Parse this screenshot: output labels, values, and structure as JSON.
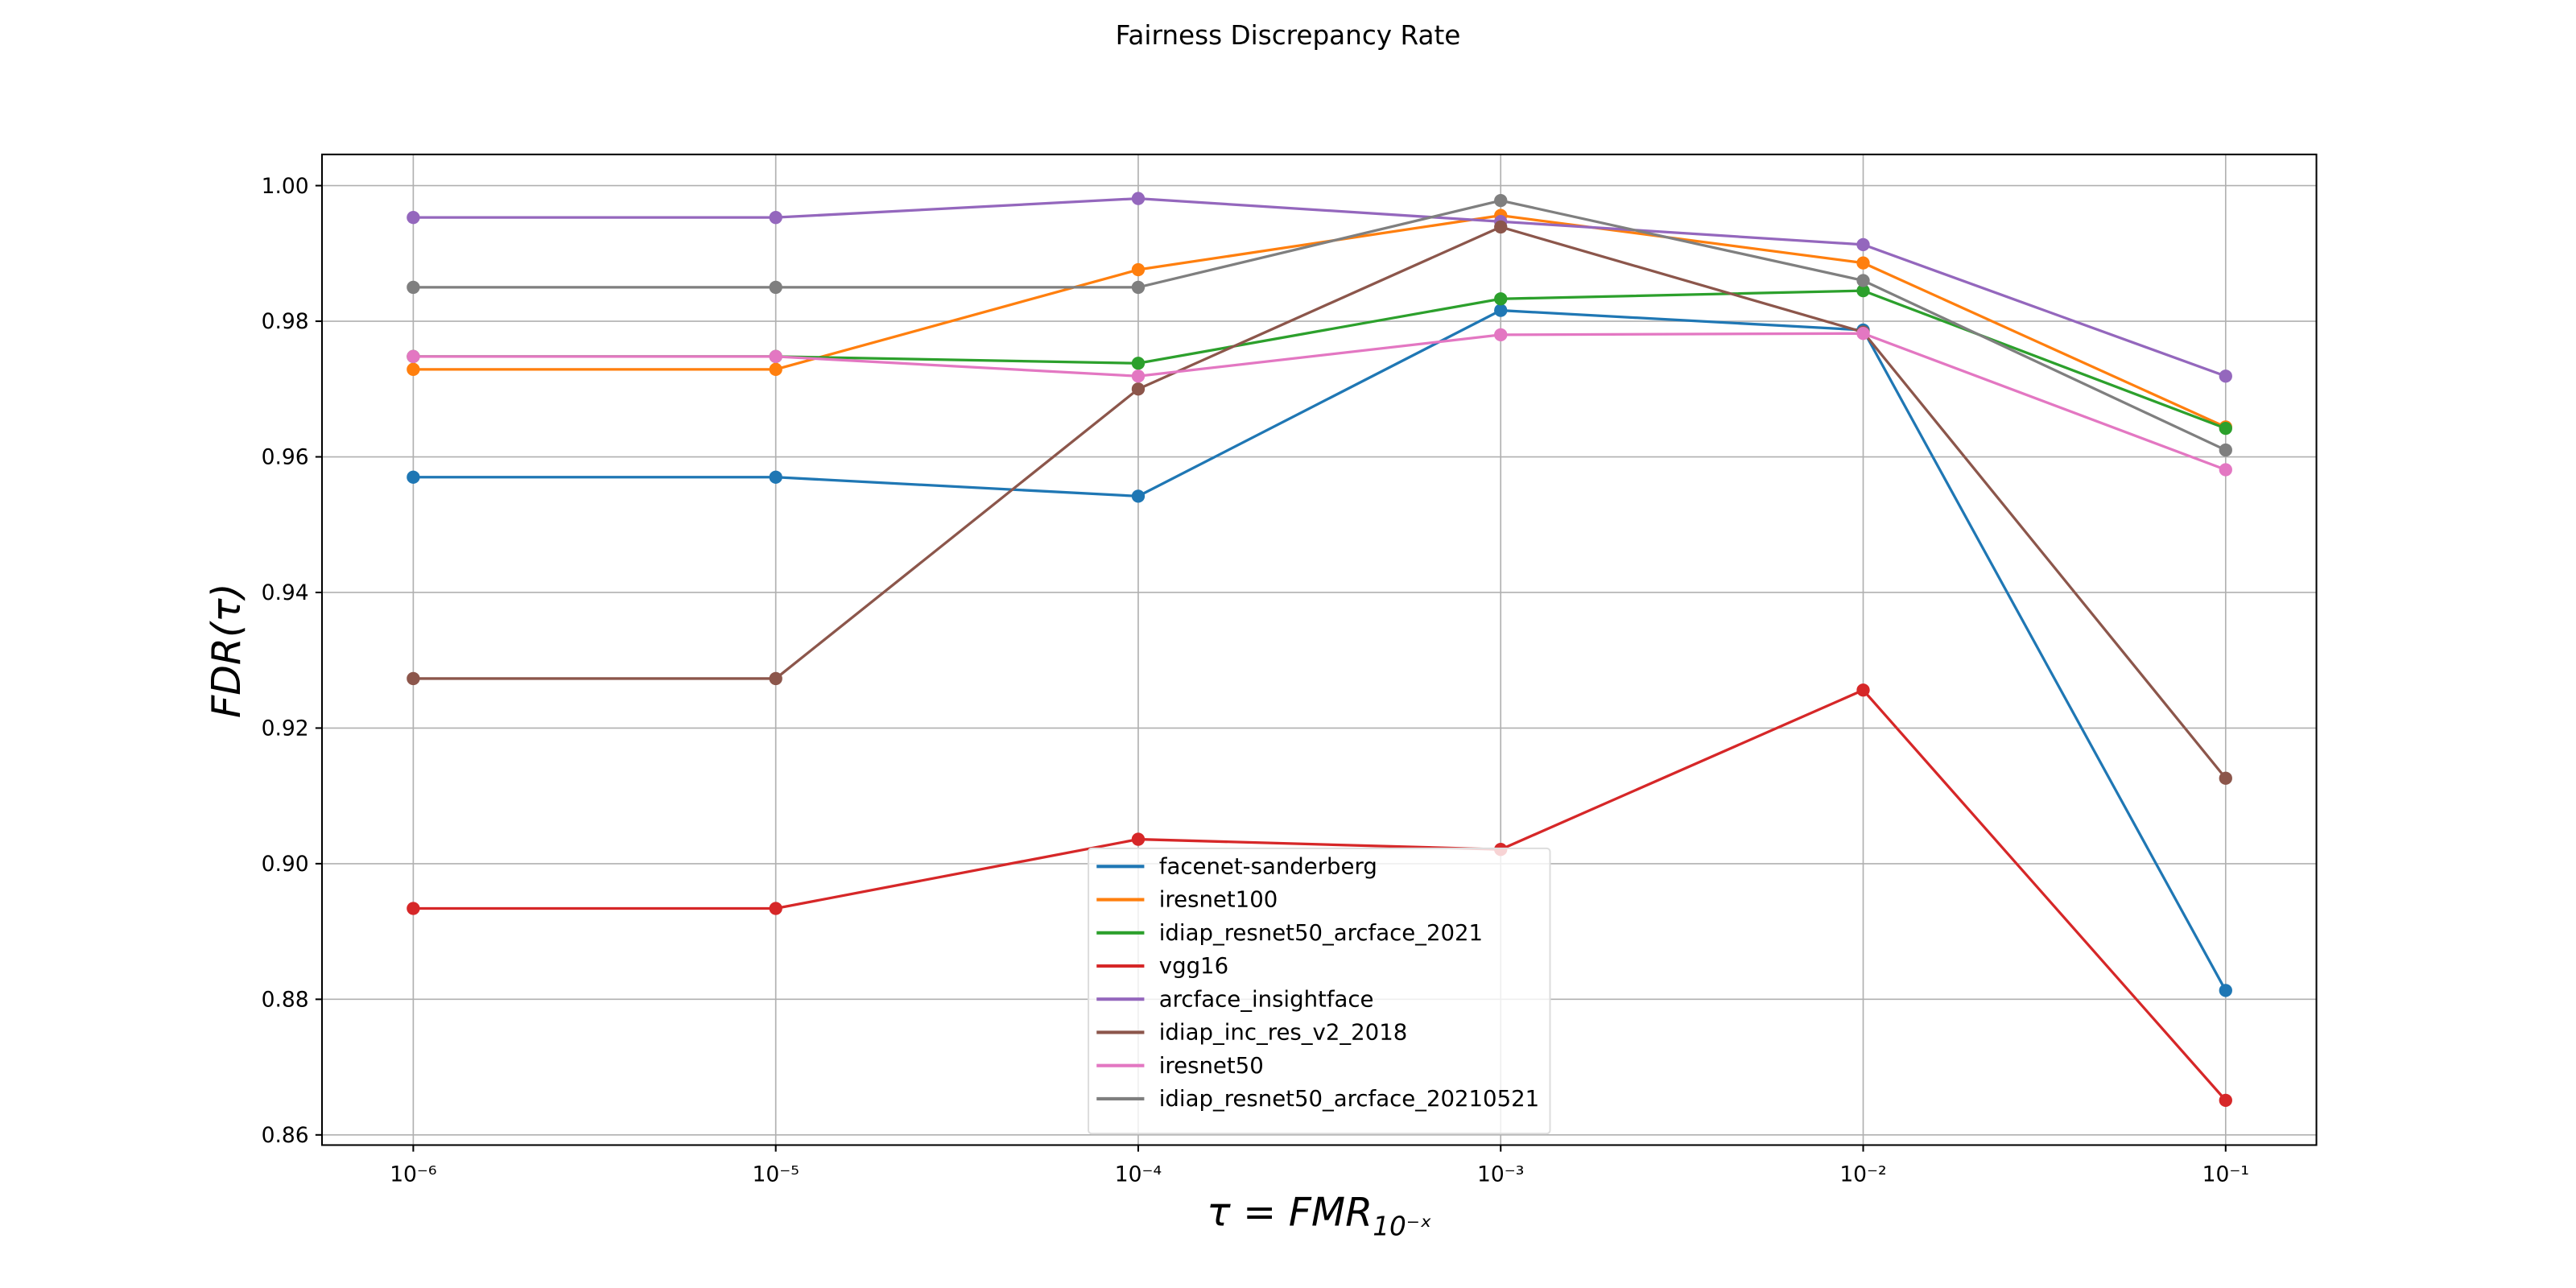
{
  "chart_data": {
    "type": "line",
    "title": "Fairness Discrepancy Rate",
    "xlabel": "τ = FMR",
    "xlabel_subscript": "10⁻ˣ",
    "ylabel": "FDR(τ)",
    "x": [
      1e-06,
      1e-05,
      0.0001,
      0.001,
      0.01,
      0.1
    ],
    "xscale": "log",
    "xlim": [
      5.6e-07,
      0.178
    ],
    "xticks": [
      {
        "value": 1e-06,
        "label": "10⁻⁶"
      },
      {
        "value": 1e-05,
        "label": "10⁻⁵"
      },
      {
        "value": 0.0001,
        "label": "10⁻⁴"
      },
      {
        "value": 0.001,
        "label": "10⁻³"
      },
      {
        "value": 0.01,
        "label": "10⁻²"
      },
      {
        "value": 0.1,
        "label": "10⁻¹"
      }
    ],
    "ylim": [
      0.8585,
      1.0046
    ],
    "yticks": [
      0.86,
      0.88,
      {
        "value": 0.9,
        "label": "0.90"
      },
      0.92,
      0.94,
      0.96,
      0.98,
      {
        "value": 1,
        "label": "1.00"
      }
    ],
    "grid": true,
    "legend_loc": "lower center",
    "series": [
      {
        "name": "facenet-sanderberg",
        "color": "#1f77b4",
        "values": [
          0.957,
          0.957,
          0.9542,
          0.9816,
          0.9787,
          0.8813
        ]
      },
      {
        "name": "iresnet100",
        "color": "#ff7f0e",
        "values": [
          0.9729,
          0.9729,
          0.9876,
          0.9956,
          0.9886,
          0.9644
        ]
      },
      {
        "name": "idiap_resnet50_arcface_2021",
        "color": "#2ca02c",
        "values": [
          0.9748,
          0.9748,
          0.9738,
          0.9833,
          0.9845,
          0.9642
        ]
      },
      {
        "name": "vgg16",
        "color": "#d62728",
        "values": [
          0.8934,
          0.8934,
          0.9036,
          0.9021,
          0.9256,
          0.8651
        ]
      },
      {
        "name": "arcface_insightface",
        "color": "#9467bd",
        "values": [
          0.9953,
          0.9953,
          0.9981,
          0.9947,
          0.9913,
          0.9719
        ]
      },
      {
        "name": "idiap_inc_res_v2_2018",
        "color": "#8c564b",
        "values": [
          0.9273,
          0.9273,
          0.97,
          0.9939,
          0.9784,
          0.9126
        ]
      },
      {
        "name": "iresnet50",
        "color": "#e377c2",
        "values": [
          0.9748,
          0.9748,
          0.9719,
          0.978,
          0.9782,
          0.9581
        ]
      },
      {
        "name": "idiap_resnet50_arcface_20210521",
        "color": "#7f7f7f",
        "values": [
          0.985,
          0.985,
          0.985,
          0.9978,
          0.986,
          0.961
        ]
      }
    ]
  }
}
